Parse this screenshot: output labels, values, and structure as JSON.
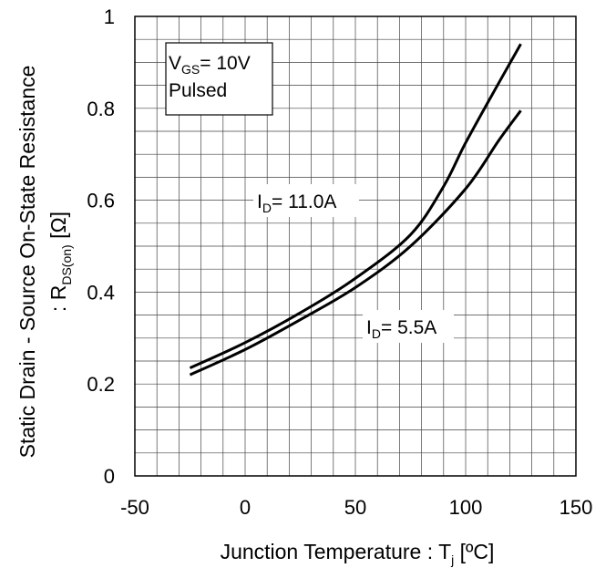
{
  "chart_data": {
    "type": "line",
    "xlabel": {
      "main": "Junction Temperature : T",
      "sub": "j",
      "unit": " [ºC]"
    },
    "ylabel": {
      "line1": "Static Drain - Source On-State Resistance",
      "line2_prefix": ": R",
      "line2_sub": "DS(on)",
      "line2_unit": " [Ω]"
    },
    "xlim": [
      -50,
      150
    ],
    "ylim": [
      0,
      1
    ],
    "x_ticks": [
      -50,
      0,
      50,
      100,
      150
    ],
    "x_tick_labels": [
      "-50",
      "0",
      "50",
      "100",
      "150"
    ],
    "y_ticks": [
      0,
      0.2,
      0.4,
      0.6,
      0.8,
      1
    ],
    "y_tick_labels": [
      "0",
      "0.2",
      "0.4",
      "0.6",
      "0.8",
      "1"
    ],
    "grid": true,
    "legend": {
      "position": "top-left",
      "line1_prefix": "V",
      "line1_sub": "GS",
      "line1_value": "= 10V",
      "line2": "Pulsed"
    },
    "series": [
      {
        "name": "ID = 11.0A",
        "label_prefix": "I",
        "label_sub": "D",
        "label_value": "= 11.0A",
        "x": [
          -25,
          0,
          25,
          50,
          75,
          90,
          100,
          115,
          125
        ],
        "y": [
          0.235,
          0.29,
          0.355,
          0.43,
          0.525,
          0.63,
          0.725,
          0.855,
          0.94
        ]
      },
      {
        "name": "ID = 5.5A",
        "label_prefix": "I",
        "label_sub": "D",
        "label_value": "= 5.5A",
        "x": [
          -25,
          0,
          25,
          50,
          75,
          100,
          115,
          125
        ],
        "y": [
          0.22,
          0.275,
          0.34,
          0.41,
          0.5,
          0.625,
          0.73,
          0.795
        ]
      }
    ]
  }
}
